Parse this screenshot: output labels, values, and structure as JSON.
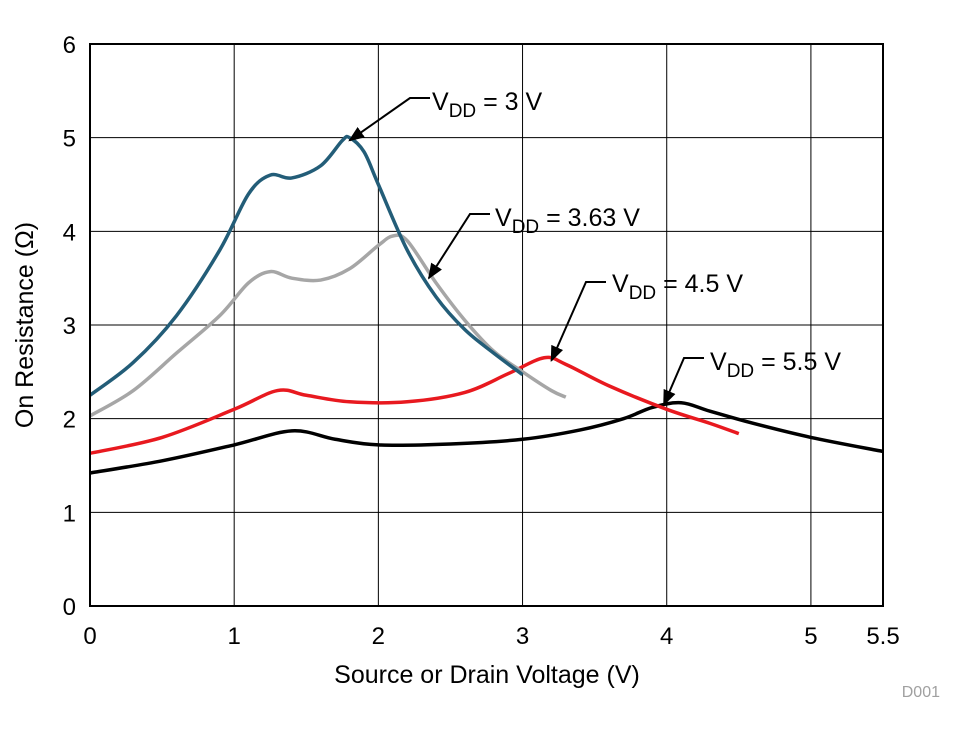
{
  "chart_data": {
    "type": "line",
    "title": "",
    "xlabel": "Source or Drain Voltage (V)",
    "ylabel": "On Resistance (Ω)",
    "xlim": [
      0,
      5.5
    ],
    "ylim": [
      0,
      6
    ],
    "xticks": [
      "0",
      "1",
      "2",
      "3",
      "4",
      "5",
      "5.5"
    ],
    "xtick_values": [
      0,
      1,
      2,
      3,
      4,
      5,
      5.5
    ],
    "yticks": [
      "0",
      "1",
      "2",
      "3",
      "4",
      "5",
      "6"
    ],
    "ytick_values": [
      0,
      1,
      2,
      3,
      4,
      5,
      6
    ],
    "grid": true,
    "watermark": "D001",
    "series": [
      {
        "name": "VDD = 3 V",
        "label": {
          "main": "V",
          "sub": "DD",
          "rest": " = 3 V"
        },
        "color": "#235d78",
        "arrow_to": [
          1.8,
          4.97
        ],
        "x": [
          0,
          0.3,
          0.6,
          0.9,
          1.1,
          1.25,
          1.4,
          1.6,
          1.75,
          1.8,
          1.9,
          2.0,
          2.2,
          2.4,
          2.6,
          2.8,
          3.0
        ],
        "y": [
          2.25,
          2.6,
          3.1,
          3.8,
          4.4,
          4.6,
          4.57,
          4.7,
          4.97,
          5.0,
          4.85,
          4.5,
          3.8,
          3.3,
          2.95,
          2.7,
          2.47
        ]
      },
      {
        "name": "VDD = 3.63 V",
        "label": {
          "main": "V",
          "sub": "DD",
          "rest": " = 3.63 V"
        },
        "color": "#a6a6a6",
        "arrow_to": [
          2.35,
          3.5
        ],
        "x": [
          0,
          0.3,
          0.6,
          0.9,
          1.1,
          1.25,
          1.4,
          1.6,
          1.8,
          2.0,
          2.1,
          2.2,
          2.4,
          2.6,
          2.8,
          3.0,
          3.2,
          3.3
        ],
        "y": [
          2.03,
          2.3,
          2.7,
          3.1,
          3.45,
          3.57,
          3.5,
          3.48,
          3.6,
          3.85,
          3.95,
          3.9,
          3.45,
          3.05,
          2.72,
          2.5,
          2.3,
          2.23
        ]
      },
      {
        "name": "VDD = 4.5 V",
        "label": {
          "main": "V",
          "sub": "DD",
          "rest": " = 4.5 V"
        },
        "color": "#e8191f",
        "arrow_to": [
          3.2,
          2.62
        ],
        "x": [
          0,
          0.5,
          1.0,
          1.3,
          1.5,
          1.8,
          2.2,
          2.6,
          2.9,
          3.15,
          3.3,
          3.6,
          4.0,
          4.3,
          4.5
        ],
        "y": [
          1.63,
          1.8,
          2.1,
          2.3,
          2.25,
          2.18,
          2.18,
          2.28,
          2.48,
          2.65,
          2.58,
          2.35,
          2.1,
          1.95,
          1.84
        ]
      },
      {
        "name": "VDD = 5.5 V",
        "label": {
          "main": "V",
          "sub": "DD",
          "rest": " = 5.5 V"
        },
        "color": "#000000",
        "arrow_to": [
          3.98,
          2.15
        ],
        "x": [
          0,
          0.5,
          1.0,
          1.4,
          1.7,
          2.0,
          2.5,
          3.0,
          3.4,
          3.7,
          3.9,
          4.1,
          4.3,
          4.6,
          5.0,
          5.5
        ],
        "y": [
          1.42,
          1.55,
          1.72,
          1.87,
          1.78,
          1.72,
          1.73,
          1.78,
          1.88,
          2.0,
          2.12,
          2.17,
          2.08,
          1.95,
          1.8,
          1.65
        ]
      }
    ]
  }
}
